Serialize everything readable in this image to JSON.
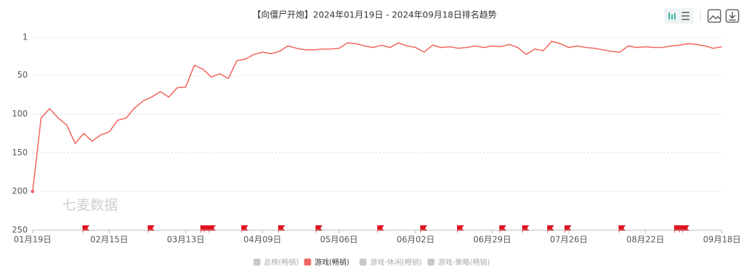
{
  "chart_data": {
    "type": "line",
    "title": "【向僵尸开炮】2024年01月19日 - 2024年09月18日排名趋势",
    "watermark": "七麦数据",
    "categories": [
      "01月19日",
      null,
      null,
      null,
      null,
      null,
      null,
      null,
      null,
      "02月15日",
      null,
      null,
      null,
      null,
      null,
      null,
      null,
      null,
      "03月13日",
      null,
      null,
      null,
      null,
      null,
      null,
      null,
      null,
      "04月09日",
      null,
      null,
      null,
      null,
      null,
      null,
      null,
      null,
      "05月06日",
      null,
      null,
      null,
      null,
      null,
      null,
      null,
      null,
      "06月02日",
      null,
      null,
      null,
      null,
      null,
      null,
      null,
      null,
      "06月29日",
      null,
      null,
      null,
      null,
      null,
      null,
      null,
      null,
      "07月26日",
      null,
      null,
      null,
      null,
      null,
      null,
      null,
      null,
      "08月22日",
      null,
      null,
      null,
      null,
      null,
      null,
      null,
      null,
      "09月18日"
    ],
    "series": [
      {
        "name": "游戏(畅销)",
        "color": "#f0675f",
        "values": [
          200,
          105,
          93,
          105,
          114,
          138,
          125,
          135,
          127,
          123,
          108,
          105,
          92,
          83,
          78,
          71,
          78,
          66,
          65,
          37,
          42,
          52,
          48,
          54,
          31,
          29,
          23,
          20,
          22,
          19,
          12,
          15,
          17,
          17,
          16,
          16,
          15,
          8,
          9,
          12,
          14,
          11,
          14,
          8,
          12,
          14,
          20,
          11,
          14,
          13,
          15,
          14,
          12,
          14,
          12,
          13,
          10,
          14,
          23,
          16,
          18,
          6,
          9,
          14,
          12,
          14,
          15,
          17,
          19,
          20,
          12,
          14,
          13,
          14,
          14,
          12,
          11,
          9,
          10,
          12,
          15,
          13
        ]
      }
    ],
    "inactive_series": [
      {
        "name": "总榜(畅销)",
        "color": "#c8c8c8"
      },
      {
        "name": "游戏-休闲(畅销)",
        "color": "#c8c8c8"
      },
      {
        "name": "游戏-策略(畅销)",
        "color": "#c8c8c8"
      }
    ],
    "ylim": [
      1,
      250
    ],
    "yticks": [
      1,
      50,
      100,
      150,
      200,
      250
    ],
    "y_inverted": true,
    "grid": true
  }
}
